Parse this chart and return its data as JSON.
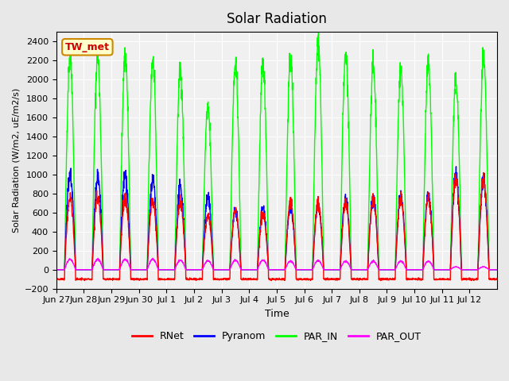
{
  "title": "Solar Radiation",
  "ylabel": "Solar Radiation (W/m2, uE/m2/s)",
  "xlabel": "Time",
  "ylim": [
    -200,
    2500
  ],
  "yticks": [
    -200,
    0,
    200,
    400,
    600,
    800,
    1000,
    1200,
    1400,
    1600,
    1800,
    2000,
    2200,
    2400
  ],
  "legend_labels": [
    "RNet",
    "Pyranom",
    "PAR_IN",
    "PAR_OUT"
  ],
  "legend_colors": [
    "#ff0000",
    "#0000ff",
    "#00ff00",
    "#ff00ff"
  ],
  "annotation_text": "TW_met",
  "annotation_facecolor": "#ffffcc",
  "annotation_edgecolor": "#cc8800",
  "bg_color": "#e8e8e8",
  "plot_bg_color": "#f0f0f0",
  "grid_color": "#ffffff",
  "n_days": 16,
  "xtick_labels": [
    "Jun 27",
    "Jun 28",
    "Jun 29",
    "Jun 30",
    "Jul 1",
    "Jul 2",
    "Jul 3",
    "Jul 4",
    "Jul 5",
    "Jul 6",
    "Jul 7",
    "Jul 8",
    "Jul 9",
    "Jul 10",
    "Jul 11",
    "Jul 12"
  ],
  "par_in_peaks": [
    2250,
    2230,
    2250,
    2200,
    2100,
    1700,
    2150,
    2150,
    2200,
    2400,
    2250,
    2150,
    2100,
    2150,
    1980,
    2200
  ],
  "pyranom_peaks": [
    1000,
    970,
    1000,
    920,
    860,
    750,
    620,
    650,
    640,
    680,
    740,
    760,
    760,
    780,
    1000,
    960
  ],
  "rnet_peaks": [
    750,
    760,
    750,
    720,
    700,
    560,
    630,
    580,
    720,
    690,
    700,
    750,
    750,
    760,
    960,
    950
  ],
  "par_out_peaks": [
    110,
    110,
    110,
    110,
    100,
    95,
    100,
    100,
    90,
    95,
    90,
    90,
    90,
    90,
    30,
    30
  ],
  "rnet_night": -100,
  "line_width": 1.0
}
